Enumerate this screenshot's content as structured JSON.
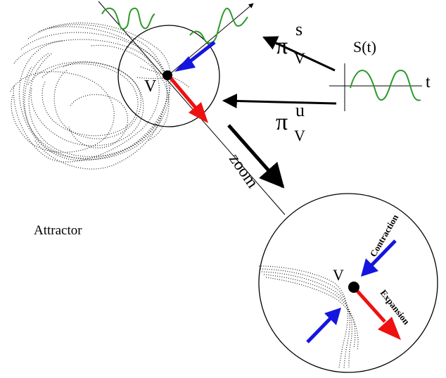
{
  "labels": {
    "attractor": "Attractor",
    "v_main": "V",
    "v_zoom": "V",
    "signal": "S(t)",
    "time_axis": "t",
    "pi_stable": "π",
    "pi_stable_sup": "s",
    "pi_stable_sub": "V",
    "pi_unstable": "π",
    "pi_unstable_sup": "u",
    "pi_unstable_sub": "V",
    "zoom": "zoom",
    "contraction": "Contraction",
    "expansion": "Expansion"
  },
  "colors": {
    "stable_arrow": "#1515e0",
    "unstable_arrow": "#ee1111",
    "signal_curve": "#2c9a2c",
    "ink": "#000000",
    "attractor_dots": "#222222"
  }
}
